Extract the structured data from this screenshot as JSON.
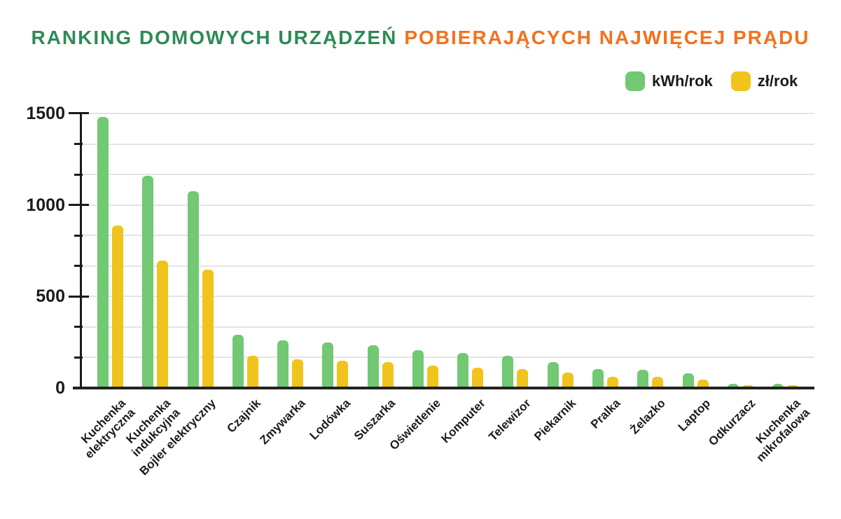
{
  "title": {
    "part1": "RANKING DOMOWYCH URZĄDZEŃ",
    "part2": "POBIERAJĄCYCH NAJWIĘCEJ PRĄDU"
  },
  "colors": {
    "title_green": "#2e8a57",
    "title_orange": "#f4711d",
    "bar_green": "#72c873",
    "bar_yellow": "#f0c41c",
    "axis": "#1b1b1b",
    "gridline": "#e4e4e4"
  },
  "chart_data": {
    "type": "bar",
    "title": "RANKING DOMOWYCH URZĄDZEŃ POBIERAJĄCYCH NAJWIĘCEJ PRĄDU",
    "categories": [
      "Kuchenka\nelektryczna",
      "Kuchenka\nindukcyjna",
      "Bojler elektryczny",
      "Czajnik",
      "Zmywarka",
      "Lodówka",
      "Suszarka",
      "Oświetlenie",
      "Komputer",
      "Telewizor",
      "Piekarnik",
      "Pralka",
      "Żelazko",
      "Laptop",
      "Odkurzacz",
      "Kuchenka\nmikrofalowa"
    ],
    "series": [
      {
        "name": "kWh/rok",
        "color": "#72c873",
        "values": [
          1480,
          1160,
          1075,
          290,
          260,
          250,
          235,
          205,
          190,
          175,
          140,
          105,
          100,
          80,
          23,
          23
        ]
      },
      {
        "name": "zł/rok",
        "color": "#f0c41c",
        "values": [
          888,
          696,
          645,
          175,
          155,
          150,
          140,
          123,
          112,
          105,
          84,
          63,
          60,
          46,
          14,
          14
        ]
      }
    ],
    "xlabel": "",
    "ylabel": "",
    "ylim": [
      0,
      1500
    ],
    "yticks": [
      0,
      500,
      1000,
      1500
    ],
    "minor_step": 166.667,
    "grid": true,
    "legend_position": "top-right",
    "x_label_rotation": -45
  }
}
